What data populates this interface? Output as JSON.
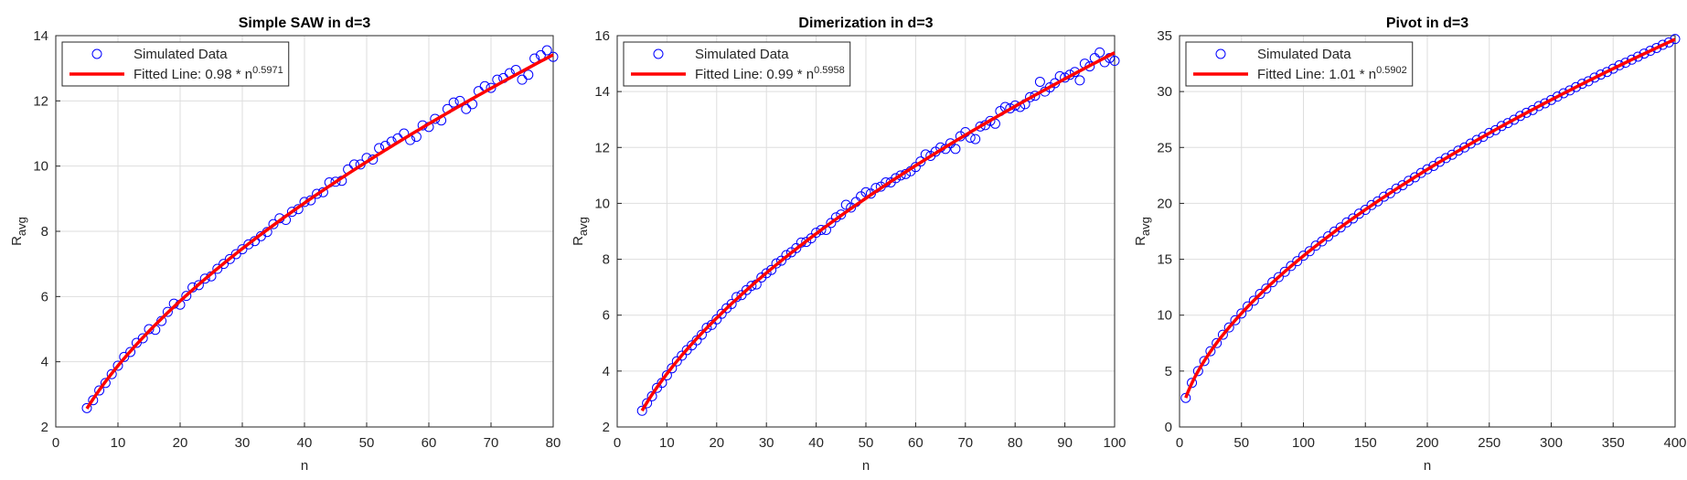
{
  "chart_data": [
    {
      "type": "scatter",
      "title": "Simple SAW in d=3",
      "xlabel": "n",
      "ylabel": "R",
      "ylabel_sub": "avg",
      "x": [
        5,
        6,
        7,
        8,
        9,
        10,
        11,
        12,
        13,
        14,
        15,
        16,
        17,
        18,
        19,
        20,
        21,
        22,
        23,
        24,
        25,
        26,
        27,
        28,
        29,
        30,
        31,
        32,
        33,
        34,
        35,
        36,
        37,
        38,
        39,
        40,
        41,
        42,
        43,
        44,
        45,
        46,
        47,
        48,
        49,
        50,
        51,
        52,
        53,
        54,
        55,
        56,
        57,
        58,
        59,
        60,
        61,
        62,
        63,
        64,
        65,
        66,
        67,
        68,
        69,
        70,
        71,
        72,
        73,
        74,
        75,
        76,
        77,
        78,
        79,
        80
      ],
      "xlim": [
        0,
        80
      ],
      "xticks": [
        0,
        10,
        20,
        30,
        40,
        50,
        60,
        70,
        80
      ],
      "ylim": [
        2,
        14
      ],
      "yticks": [
        2,
        4,
        6,
        8,
        10,
        12,
        14
      ],
      "grid": true,
      "legend": "northwest",
      "series": [
        {
          "name": "Simulated Data",
          "color": "#0000ff",
          "values": [
            2.58,
            2.82,
            3.12,
            3.35,
            3.62,
            3.88,
            4.15,
            4.3,
            4.58,
            4.72,
            5.0,
            4.98,
            5.25,
            5.53,
            5.78,
            5.75,
            6.02,
            6.28,
            6.35,
            6.55,
            6.62,
            6.85,
            7.0,
            7.15,
            7.3,
            7.45,
            7.6,
            7.7,
            7.85,
            7.98,
            8.22,
            8.4,
            8.35,
            8.6,
            8.68,
            8.9,
            8.95,
            9.15,
            9.2,
            9.5,
            9.52,
            9.55,
            9.9,
            10.05,
            10.05,
            10.25,
            10.2,
            10.55,
            10.62,
            10.75,
            10.85,
            11.0,
            10.8,
            10.9,
            11.25,
            11.2,
            11.45,
            11.4,
            11.75,
            11.95,
            12.0,
            11.75,
            11.9,
            12.3,
            12.45,
            12.4,
            12.65,
            12.7,
            12.85,
            12.95,
            12.65,
            12.8,
            13.3,
            13.4,
            13.55,
            13.35
          ]
        },
        {
          "name": "Fitted Line: 0.98 * n",
          "name_sup": "0.5971",
          "color": "#ff0000",
          "coefficient": 0.98,
          "exponent": 0.5971
        }
      ]
    },
    {
      "type": "scatter",
      "title": "Dimerization in d=3",
      "xlabel": "n",
      "ylabel": "R",
      "ylabel_sub": "avg",
      "x": [
        5,
        6,
        7,
        8,
        9,
        10,
        11,
        12,
        13,
        14,
        15,
        16,
        17,
        18,
        19,
        20,
        21,
        22,
        23,
        24,
        25,
        26,
        27,
        28,
        29,
        30,
        31,
        32,
        33,
        34,
        35,
        36,
        37,
        38,
        39,
        40,
        41,
        42,
        43,
        44,
        45,
        46,
        47,
        48,
        49,
        50,
        51,
        52,
        53,
        54,
        55,
        56,
        57,
        58,
        59,
        60,
        61,
        62,
        63,
        64,
        65,
        66,
        67,
        68,
        69,
        70,
        71,
        72,
        73,
        74,
        75,
        76,
        77,
        78,
        79,
        80,
        81,
        82,
        83,
        84,
        85,
        86,
        87,
        88,
        89,
        90,
        91,
        92,
        93,
        94,
        95,
        96,
        97,
        98,
        99,
        100
      ],
      "xlim": [
        0,
        100
      ],
      "xticks": [
        0,
        10,
        20,
        30,
        40,
        50,
        60,
        70,
        80,
        90,
        100
      ],
      "ylim": [
        2,
        16
      ],
      "yticks": [
        2,
        4,
        6,
        8,
        10,
        12,
        14,
        16
      ],
      "grid": true,
      "legend": "northwest",
      "series": [
        {
          "name": "Simulated Data",
          "color": "#0000ff",
          "values": [
            2.58,
            2.85,
            3.1,
            3.4,
            3.58,
            3.85,
            4.1,
            4.35,
            4.55,
            4.75,
            4.92,
            5.1,
            5.3,
            5.55,
            5.65,
            5.85,
            6.05,
            6.25,
            6.4,
            6.65,
            6.72,
            6.9,
            7.05,
            7.1,
            7.35,
            7.5,
            7.62,
            7.85,
            7.95,
            8.15,
            8.25,
            8.4,
            8.6,
            8.62,
            8.75,
            8.95,
            9.05,
            9.05,
            9.3,
            9.5,
            9.6,
            9.95,
            9.85,
            10.05,
            10.25,
            10.4,
            10.35,
            10.55,
            10.6,
            10.75,
            10.75,
            10.9,
            11.0,
            11.05,
            11.15,
            11.3,
            11.5,
            11.75,
            11.7,
            11.85,
            12.0,
            11.95,
            12.15,
            11.95,
            12.4,
            12.55,
            12.35,
            12.3,
            12.75,
            12.8,
            12.95,
            12.85,
            13.3,
            13.45,
            13.4,
            13.5,
            13.45,
            13.55,
            13.8,
            13.85,
            14.35,
            14.0,
            14.15,
            14.3,
            14.55,
            14.5,
            14.6,
            14.7,
            14.4,
            15.0,
            14.9,
            15.2,
            15.4,
            15.05,
            15.2,
            15.1
          ]
        },
        {
          "name": "Fitted Line: 0.99 * n",
          "name_sup": "0.5958",
          "color": "#ff0000",
          "coefficient": 0.99,
          "exponent": 0.5958
        }
      ]
    },
    {
      "type": "scatter",
      "title": "Pivot in d=3",
      "xlabel": "n",
      "ylabel": "R",
      "ylabel_sub": "avg",
      "x": [
        5,
        10,
        15,
        20,
        25,
        30,
        35,
        40,
        45,
        50,
        55,
        60,
        65,
        70,
        75,
        80,
        85,
        90,
        95,
        100,
        105,
        110,
        115,
        120,
        125,
        130,
        135,
        140,
        145,
        150,
        155,
        160,
        165,
        170,
        175,
        180,
        185,
        190,
        195,
        200,
        205,
        210,
        215,
        220,
        225,
        230,
        235,
        240,
        245,
        250,
        255,
        260,
        265,
        270,
        275,
        280,
        285,
        290,
        295,
        300,
        305,
        310,
        315,
        320,
        325,
        330,
        335,
        340,
        345,
        350,
        355,
        360,
        365,
        370,
        375,
        380,
        385,
        390,
        395,
        400
      ],
      "xlim": [
        0,
        400
      ],
      "xticks": [
        0,
        50,
        100,
        150,
        200,
        250,
        300,
        350,
        400
      ],
      "ylim": [
        0,
        35
      ],
      "yticks": [
        0,
        5,
        10,
        15,
        20,
        25,
        30,
        35
      ],
      "grid": true,
      "legend": "northwest",
      "series": [
        {
          "name": "Simulated Data",
          "color": "#0000ff",
          "values": [
            2.6,
            3.95,
            5.0,
            5.9,
            6.78,
            7.5,
            8.25,
            8.9,
            9.55,
            10.15,
            10.78,
            11.3,
            11.9,
            12.38,
            12.95,
            13.4,
            13.88,
            14.4,
            14.83,
            15.32,
            15.72,
            16.22,
            16.6,
            17.05,
            17.48,
            17.85,
            18.3,
            18.65,
            19.08,
            19.42,
            19.85,
            20.18,
            20.6,
            20.9,
            21.32,
            21.62,
            22.02,
            22.33,
            22.72,
            23.05,
            23.35,
            23.72,
            24.05,
            24.35,
            24.72,
            25.0,
            25.35,
            25.68,
            25.95,
            26.3,
            26.55,
            26.92,
            27.18,
            27.48,
            27.82,
            28.1,
            28.35,
            28.7,
            28.95,
            29.25,
            29.55,
            29.85,
            30.1,
            30.4,
            30.7,
            30.92,
            31.25,
            31.52,
            31.75,
            32.05,
            32.35,
            32.58,
            32.85,
            33.12,
            33.4,
            33.65,
            33.9,
            34.18,
            34.4,
            34.7
          ]
        },
        {
          "name": "Fitted Line: 1.01 * n",
          "name_sup": "0.5902",
          "color": "#ff0000",
          "coefficient": 1.01,
          "exponent": 0.5902
        }
      ]
    }
  ]
}
